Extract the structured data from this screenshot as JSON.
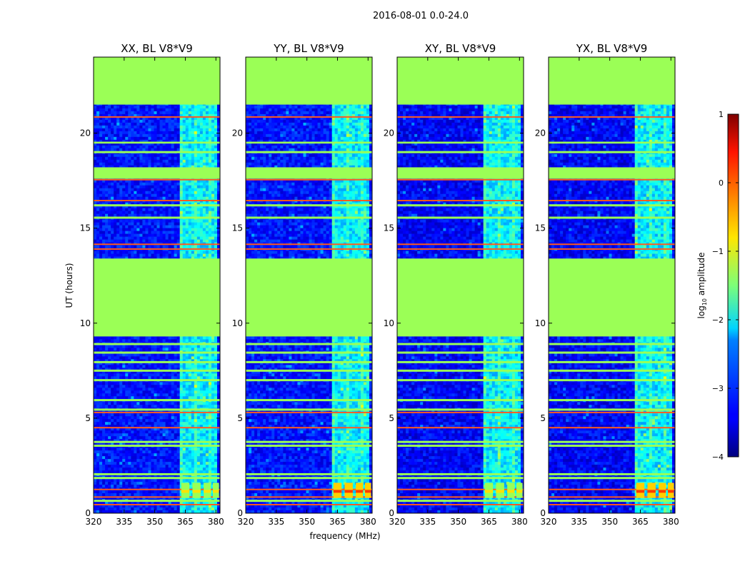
{
  "figure": {
    "suptitle": "2016-08-01 0.0-24.0"
  },
  "chart_data": [
    {
      "type": "heatmap",
      "title": "XX, BL V8*V9",
      "xlabel": "",
      "ylabel": "UT (hours)",
      "xlim": [
        320,
        382
      ],
      "ylim": [
        0,
        24
      ],
      "xticks": [
        320,
        335,
        350,
        365,
        380
      ],
      "yticks": [
        0,
        5,
        10,
        15,
        20
      ],
      "colormap": "jet",
      "value_label": "log10 amplitude",
      "polarization": "XX",
      "activity_band_mhz": [
        362,
        380
      ]
    },
    {
      "type": "heatmap",
      "title": "YY, BL V8*V9",
      "xlabel": "frequency (MHz)",
      "ylabel": "",
      "xlim": [
        320,
        382
      ],
      "ylim": [
        0,
        24
      ],
      "xticks": [
        320,
        335,
        350,
        365,
        380
      ],
      "yticks": [
        0,
        5,
        10,
        15,
        20
      ],
      "colormap": "jet",
      "value_label": "log10 amplitude",
      "polarization": "YY",
      "activity_band_mhz": [
        362,
        380
      ]
    },
    {
      "type": "heatmap",
      "title": "XY, BL V8*V9",
      "xlabel": "",
      "ylabel": "",
      "xlim": [
        320,
        382
      ],
      "ylim": [
        0,
        24
      ],
      "xticks": [
        320,
        335,
        350,
        365,
        380
      ],
      "yticks": [
        0,
        5,
        10,
        15,
        20
      ],
      "colormap": "jet",
      "value_label": "log10 amplitude",
      "polarization": "XY",
      "activity_band_mhz": [
        362,
        380
      ]
    },
    {
      "type": "heatmap",
      "title": "YX, BL V8*V9",
      "xlabel": "",
      "ylabel": "",
      "xlim": [
        320,
        382
      ],
      "ylim": [
        0,
        24
      ],
      "xticks": [
        320,
        335,
        350,
        365,
        380
      ],
      "yticks": [
        0,
        5,
        10,
        15,
        20
      ],
      "colormap": "jet",
      "value_label": "log10 amplitude",
      "polarization": "YX",
      "activity_band_mhz": [
        362,
        380
      ]
    }
  ],
  "time_structure": {
    "flagged_hours": [
      [
        9.3,
        13.4
      ],
      [
        21.5,
        24.0
      ],
      [
        17.6,
        18.2
      ],
      [
        19.45,
        19.55
      ]
    ],
    "hot_lines_hours": [
      0.45,
      0.85,
      1.25,
      4.5,
      5.3,
      13.9,
      14.15,
      16.45,
      17.55,
      20.85
    ],
    "green_lines_hours": [
      0.65,
      1.85,
      2.05,
      3.55,
      3.75,
      5.45,
      5.95,
      7.0,
      7.5,
      7.95,
      8.45,
      8.9,
      15.55,
      16.2,
      19.0
    ],
    "rfi_blocks": {
      "hours": [
        0.8,
        1.6
      ],
      "channels_mhz": [
        [
          363,
          367
        ],
        [
          368.5,
          372.5
        ],
        [
          374,
          377.5
        ],
        [
          378.5,
          381.5
        ]
      ]
    },
    "background_log_amp": -3.2,
    "flag_log_amp": -1.2
  },
  "colorbar": {
    "label": "log10 amplitude",
    "label_base": "log",
    "label_sub": "10",
    "label_rest": " amplitude",
    "vmin": -4,
    "vmax": 1,
    "ticks": [
      1,
      0,
      -1,
      -2,
      -3,
      -4
    ],
    "tick_labels": [
      "1",
      "0",
      "−1",
      "−2",
      "−3",
      "−4"
    ],
    "colormap": "jet"
  },
  "colors": {
    "flag_green": "#9bff56",
    "hot_orange": "#ff5a1e",
    "text": "#000000"
  }
}
